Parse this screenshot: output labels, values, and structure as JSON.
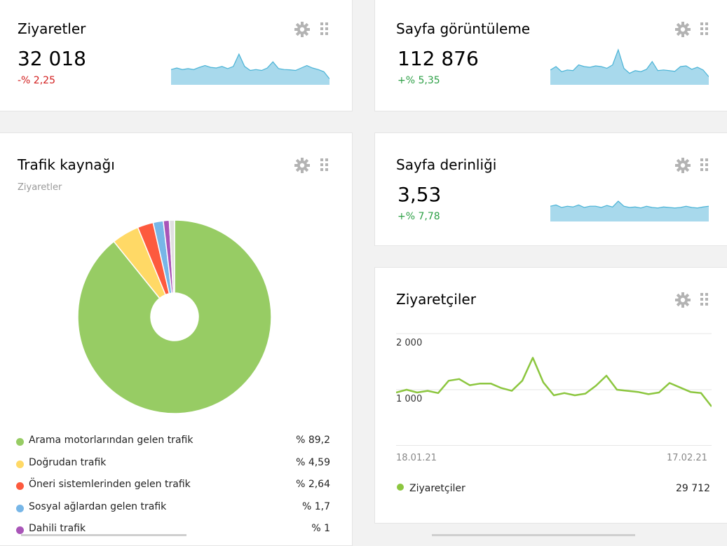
{
  "colors": {
    "spark_fill": "#a8d9ec",
    "spark_line": "#49b3d6",
    "negative": "#d21d1d",
    "positive": "#2c9f45",
    "line_green": "#8cc63f",
    "icon_gray": "#b3b3b3"
  },
  "widgets": {
    "visits": {
      "title": "Ziyaretler",
      "value": "32 018",
      "delta": "-% 2,25",
      "spark": [
        0.45,
        0.5,
        0.45,
        0.48,
        0.45,
        0.52,
        0.58,
        0.52,
        0.5,
        0.55,
        0.48,
        0.55,
        0.95,
        0.55,
        0.42,
        0.45,
        0.42,
        0.5,
        0.7,
        0.48,
        0.45,
        0.44,
        0.42,
        0.5,
        0.58,
        0.5,
        0.45,
        0.38,
        0.15
      ]
    },
    "pageviews": {
      "title": "Sayfa görüntüleme",
      "value": "112 876",
      "delta": "+% 5,35",
      "spark": [
        0.4,
        0.5,
        0.35,
        0.4,
        0.38,
        0.55,
        0.5,
        0.48,
        0.52,
        0.5,
        0.45,
        0.55,
        1.0,
        0.45,
        0.3,
        0.38,
        0.35,
        0.42,
        0.65,
        0.38,
        0.4,
        0.38,
        0.36,
        0.5,
        0.52,
        0.42,
        0.48,
        0.4,
        0.2
      ]
    },
    "depth": {
      "title": "Sayfa derinliği",
      "value": "3,53",
      "delta": "+% 7,78",
      "spark": [
        0.55,
        0.6,
        0.5,
        0.55,
        0.52,
        0.6,
        0.5,
        0.55,
        0.55,
        0.5,
        0.58,
        0.52,
        0.75,
        0.55,
        0.5,
        0.52,
        0.48,
        0.55,
        0.5,
        0.48,
        0.52,
        0.5,
        0.48,
        0.5,
        0.55,
        0.5,
        0.48,
        0.52,
        0.55
      ]
    },
    "traffic": {
      "title": "Trafik kaynağı",
      "subtitle": "Ziyaretler",
      "legend": [
        {
          "label": "Arama motorlarından gelen trafik",
          "value": "% 89,2",
          "pct": 89.2,
          "color": "#97cc64"
        },
        {
          "label": "Doğrudan trafik",
          "value": "% 4,59",
          "pct": 4.59,
          "color": "#ffd966"
        },
        {
          "label": "Öneri sistemlerinden gelen trafik",
          "value": "% 2,64",
          "pct": 2.64,
          "color": "#fd5a3e"
        },
        {
          "label": "Sosyal ağlardan gelen trafik",
          "value": "% 1,7",
          "pct": 1.7,
          "color": "#77b6e7"
        },
        {
          "label": "Dahili trafik",
          "value": "% 1",
          "pct": 1.0,
          "color": "#a955b8"
        }
      ],
      "remainder_color": "#e0e0e0"
    },
    "visitors": {
      "title": "Ziyaretçiler",
      "legend_label": "Ziyaretçiler",
      "legend_value": "29 712"
    }
  },
  "chart_data": {
    "type": "line",
    "title": "Ziyaretçiler",
    "ylim": [
      0,
      2000
    ],
    "y_ticks": [
      "2 000",
      "1 000"
    ],
    "x_tick_labels": [
      "18.01.21",
      "17.02.21"
    ],
    "grid": true,
    "series": [
      {
        "name": "Ziyaretçiler",
        "values": [
          950,
          1000,
          950,
          980,
          940,
          1160,
          1190,
          1080,
          1110,
          1110,
          1030,
          980,
          1160,
          1570,
          1130,
          900,
          940,
          900,
          930,
          1070,
          1250,
          1000,
          980,
          960,
          920,
          950,
          1120,
          1040,
          960,
          940,
          700
        ]
      }
    ]
  }
}
